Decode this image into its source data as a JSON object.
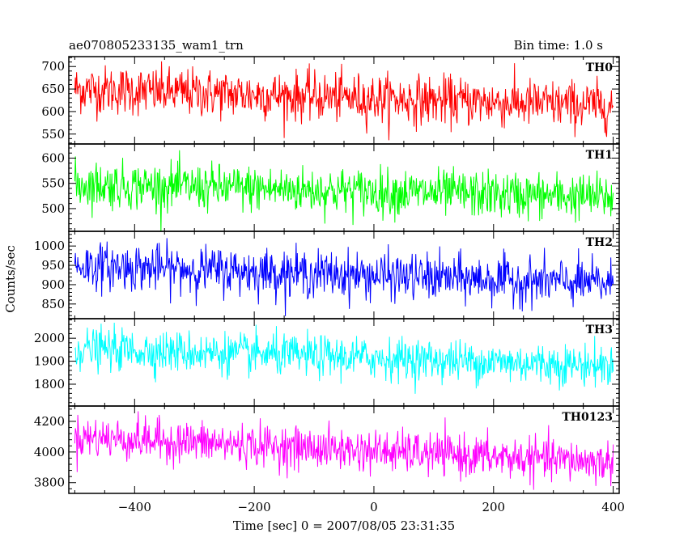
{
  "chart_data": {
    "type": "line",
    "title": "ae070805233135_wam1_trn",
    "bin_time": "Bin time: 1.0 s",
    "xlabel": "Time [sec] 0 = 2007/08/05 23:31:35",
    "ylabel": "Counts/sec",
    "xlim": [
      -510,
      410
    ],
    "x_ticks": [
      -400,
      -200,
      0,
      200,
      400
    ],
    "x_range_data": [
      -500,
      400
    ],
    "grid": false,
    "panels": [
      {
        "name": "TH0",
        "color": "#ff0000",
        "ylim": [
          528,
          722
        ],
        "y_ticks": [
          550,
          600,
          650,
          700
        ],
        "trend": {
          "start": 650,
          "end": 612
        },
        "noise_sd": 27
      },
      {
        "name": "TH1",
        "color": "#00ff00",
        "ylim": [
          455,
          628
        ],
        "y_ticks": [
          500,
          550,
          600
        ],
        "trend": {
          "start": 548,
          "end": 522
        },
        "noise_sd": 23
      },
      {
        "name": "TH2",
        "color": "#0000ff",
        "ylim": [
          812,
          1038
        ],
        "y_ticks": [
          850,
          900,
          950,
          1000
        ],
        "trend": {
          "start": 950,
          "end": 902
        },
        "noise_sd": 30
      },
      {
        "name": "TH3",
        "color": "#00ffff",
        "ylim": [
          1705,
          2085
        ],
        "y_ticks": [
          1800,
          1900,
          2000
        ],
        "trend": {
          "start": 1955,
          "end": 1880
        },
        "noise_sd": 45
      },
      {
        "name": "TH0123",
        "color": "#ff00ff",
        "ylim": [
          3730,
          4300
        ],
        "y_ticks": [
          3800,
          4000,
          4200
        ],
        "trend": {
          "start": 4100,
          "end": 3930
        },
        "noise_sd": 68
      }
    ]
  }
}
